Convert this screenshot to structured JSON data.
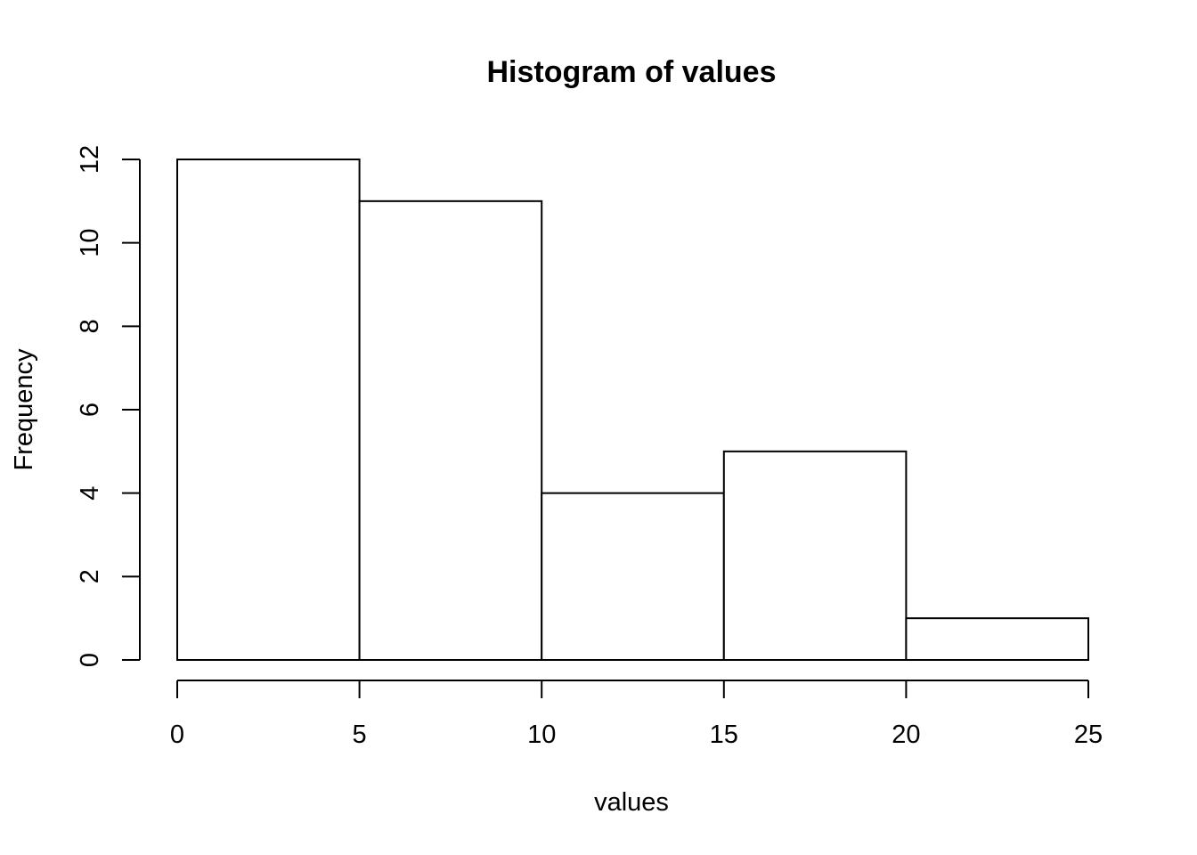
{
  "chart_data": {
    "type": "bar",
    "title": "Histogram of values",
    "xlabel": "values",
    "ylabel": "Frequency",
    "bins": [
      {
        "start": 0,
        "end": 5,
        "count": 12
      },
      {
        "start": 5,
        "end": 10,
        "count": 11
      },
      {
        "start": 10,
        "end": 15,
        "count": 4
      },
      {
        "start": 15,
        "end": 20,
        "count": 5
      },
      {
        "start": 20,
        "end": 25,
        "count": 1
      }
    ],
    "xlim": [
      0,
      25
    ],
    "ylim": [
      0,
      12
    ],
    "x_ticks": [
      0,
      5,
      10,
      15,
      20,
      25
    ],
    "y_ticks": [
      0,
      2,
      4,
      6,
      8,
      10,
      12
    ],
    "grid": false,
    "bar_fill": "#ffffff",
    "bar_stroke": "#000000"
  }
}
